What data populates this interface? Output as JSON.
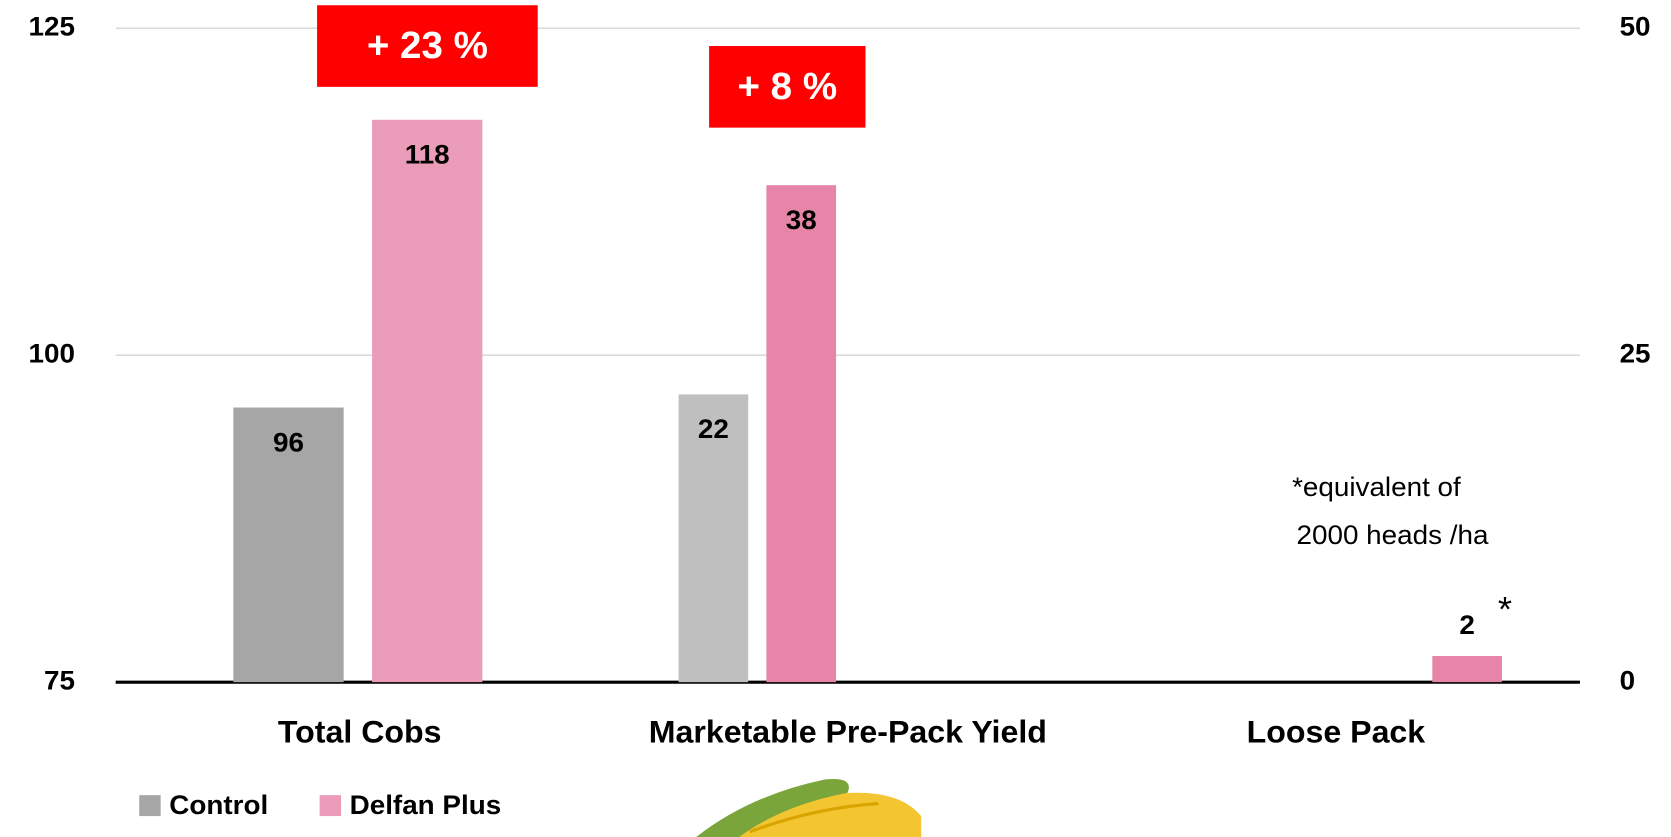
{
  "chart_data": [
    {
      "type": "bar",
      "categories": [
        "Total Cobs"
      ],
      "ylim": [
        75,
        125
      ],
      "yticks": [
        75,
        100,
        125
      ],
      "grid": true,
      "series": [
        {
          "name": "Control",
          "color": "#a6a6a6",
          "values": [
            96
          ]
        },
        {
          "name": "Delfan Plus",
          "color": "#eb9cb9",
          "values": [
            118
          ]
        }
      ],
      "legend": "bottom-left",
      "annotations": [
        "+ 23 %"
      ]
    },
    {
      "type": "bar",
      "categories": [
        "Marketable Pre-Pack Yield",
        "Loose Pack"
      ],
      "y2lim": [
        0,
        50
      ],
      "y2ticks": [
        0,
        25,
        50
      ],
      "series": [
        {
          "color": "#bfbfbf",
          "axis": "y2",
          "values": [
            22,
            null
          ]
        },
        {
          "color": "#e685a8",
          "axis": "y2",
          "values": [
            38,
            2
          ]
        }
      ],
      "annotations": [
        "+ 8 %",
        "*"
      ],
      "footnote": [
        "*equivalent of",
        "2000 heads /ha"
      ]
    }
  ]
}
